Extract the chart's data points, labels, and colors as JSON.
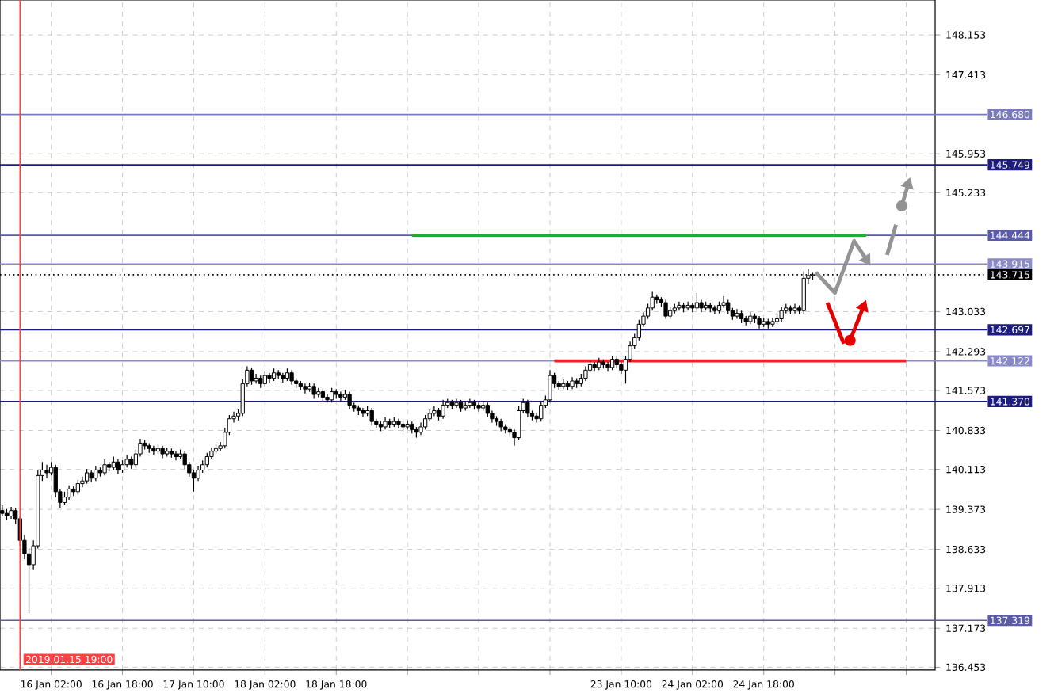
{
  "chart_data": {
    "type": "candlestick",
    "categories": [
      null,
      null,
      null,
      null,
      null,
      null,
      null,
      null,
      null,
      null,
      null,
      "16 Jan 02:00",
      null,
      null,
      null,
      null,
      null,
      null,
      null,
      null,
      null,
      null,
      null,
      null,
      null,
      null,
      null,
      "16 Jan 18:00",
      null,
      null,
      null,
      null,
      null,
      null,
      null,
      null,
      null,
      null,
      null,
      null,
      null,
      null,
      null,
      "17 Jan 10:00",
      null,
      null,
      null,
      null,
      null,
      null,
      null,
      null,
      null,
      null,
      null,
      null,
      null,
      null,
      null,
      "18 Jan 02:00",
      null,
      null,
      null,
      null,
      null,
      null,
      null,
      null,
      null,
      null,
      null,
      null,
      null,
      null,
      null,
      "18 Jan 18:00",
      null,
      null,
      null,
      null,
      null,
      null,
      null,
      null,
      null,
      null,
      null,
      null,
      null,
      null,
      null,
      null,
      null,
      null,
      null,
      null,
      null,
      null,
      null,
      null,
      null,
      null,
      null,
      null,
      null,
      null,
      null,
      null,
      null,
      null,
      null,
      null,
      null,
      null,
      null,
      null,
      null,
      null,
      null,
      null,
      null,
      null,
      null,
      null,
      null,
      null,
      null,
      null,
      null,
      null,
      null,
      null,
      null,
      null,
      null,
      null,
      null,
      null,
      null,
      "23 Jan 10:00",
      null,
      null,
      null,
      null,
      null,
      null,
      null,
      null,
      null,
      null,
      null,
      null,
      null,
      null,
      null,
      "24 Jan 02:00",
      null,
      null,
      null,
      null,
      null,
      null,
      null,
      null,
      null,
      null,
      null,
      null,
      null,
      null,
      null,
      "24 Jan 18:00",
      null,
      null,
      null,
      null,
      null,
      null,
      null,
      null,
      null,
      null,
      null,
      null,
      null,
      null,
      null,
      null,
      null,
      null,
      null,
      null,
      null,
      null,
      null,
      null,
      null,
      null,
      null,
      null,
      null,
      null,
      null,
      null,
      null,
      null,
      null,
      null,
      null,
      null
    ],
    "ohlc": [
      [
        139.35,
        139.45,
        139.25,
        139.3
      ],
      [
        139.3,
        139.38,
        139.18,
        139.25
      ],
      [
        139.25,
        139.42,
        139.2,
        139.35
      ],
      [
        139.35,
        139.4,
        139.1,
        139.2
      ],
      [
        139.2,
        139.25,
        138.7,
        138.8
      ],
      [
        138.8,
        138.9,
        138.45,
        138.55
      ],
      [
        138.55,
        138.65,
        137.45,
        138.35
      ],
      [
        138.35,
        138.8,
        138.25,
        138.7
      ],
      [
        138.7,
        140.1,
        138.65,
        140.0
      ],
      [
        140.0,
        140.25,
        139.9,
        140.1
      ],
      [
        140.1,
        140.2,
        139.95,
        140.05
      ],
      [
        140.05,
        140.25,
        140.0,
        140.15
      ],
      [
        140.15,
        140.2,
        139.6,
        139.7
      ],
      [
        139.7,
        139.75,
        139.4,
        139.5
      ],
      [
        139.5,
        139.7,
        139.45,
        139.6
      ],
      [
        139.6,
        139.82,
        139.55,
        139.75
      ],
      [
        139.75,
        139.8,
        139.62,
        139.7
      ],
      [
        139.7,
        139.92,
        139.65,
        139.85
      ],
      [
        139.85,
        139.98,
        139.78,
        139.9
      ],
      [
        139.9,
        140.12,
        139.85,
        140.05
      ],
      [
        140.05,
        140.1,
        139.88,
        139.95
      ],
      [
        139.95,
        140.18,
        139.9,
        140.1
      ],
      [
        140.1,
        140.15,
        139.98,
        140.05
      ],
      [
        140.05,
        140.3,
        140.0,
        140.2
      ],
      [
        140.2,
        140.25,
        140.08,
        140.15
      ],
      [
        140.15,
        140.35,
        140.1,
        140.25
      ],
      [
        140.25,
        140.3,
        140.02,
        140.1
      ],
      [
        140.1,
        140.28,
        140.05,
        140.2
      ],
      [
        140.2,
        140.38,
        140.15,
        140.3
      ],
      [
        140.3,
        140.35,
        140.12,
        140.2
      ],
      [
        140.2,
        140.48,
        140.15,
        140.4
      ],
      [
        140.4,
        140.68,
        140.35,
        140.6
      ],
      [
        140.6,
        140.65,
        140.48,
        140.55
      ],
      [
        140.55,
        140.6,
        140.42,
        140.5
      ],
      [
        140.5,
        140.55,
        140.38,
        140.45
      ],
      [
        140.45,
        140.58,
        140.4,
        140.5
      ],
      [
        140.5,
        140.55,
        140.32,
        140.4
      ],
      [
        140.4,
        140.52,
        140.35,
        140.45
      ],
      [
        140.45,
        140.5,
        140.33,
        140.4
      ],
      [
        140.4,
        140.45,
        140.28,
        140.35
      ],
      [
        140.35,
        140.48,
        140.3,
        140.4
      ],
      [
        140.4,
        140.45,
        140.12,
        140.2
      ],
      [
        140.2,
        140.25,
        139.98,
        140.05
      ],
      [
        140.05,
        140.1,
        139.7,
        139.95
      ],
      [
        139.95,
        140.18,
        139.9,
        140.1
      ],
      [
        140.1,
        140.28,
        140.05,
        140.2
      ],
      [
        140.2,
        140.42,
        140.15,
        140.35
      ],
      [
        140.35,
        140.52,
        140.3,
        140.45
      ],
      [
        140.45,
        140.58,
        140.4,
        140.5
      ],
      [
        140.5,
        140.62,
        140.45,
        140.55
      ],
      [
        140.55,
        140.88,
        140.5,
        140.8
      ],
      [
        140.8,
        141.12,
        140.75,
        141.05
      ],
      [
        141.05,
        141.18,
        140.98,
        141.1
      ],
      [
        141.1,
        141.22,
        141.02,
        141.15
      ],
      [
        141.15,
        141.78,
        141.1,
        141.7
      ],
      [
        141.7,
        142.02,
        141.65,
        141.95
      ],
      [
        141.95,
        142.0,
        141.68,
        141.75
      ],
      [
        141.75,
        141.88,
        141.7,
        141.8
      ],
      [
        141.8,
        141.85,
        141.62,
        141.7
      ],
      [
        141.7,
        141.92,
        141.65,
        141.85
      ],
      [
        141.85,
        141.9,
        141.72,
        141.8
      ],
      [
        141.8,
        141.98,
        141.75,
        141.9
      ],
      [
        141.9,
        141.95,
        141.78,
        141.85
      ],
      [
        141.85,
        141.9,
        141.72,
        141.8
      ],
      [
        141.8,
        141.98,
        141.75,
        141.9
      ],
      [
        141.9,
        141.95,
        141.68,
        141.75
      ],
      [
        141.75,
        141.8,
        141.62,
        141.7
      ],
      [
        141.7,
        141.75,
        141.58,
        141.65
      ],
      [
        141.65,
        141.7,
        141.52,
        141.6
      ],
      [
        141.6,
        141.72,
        141.55,
        141.65
      ],
      [
        141.65,
        141.7,
        141.42,
        141.5
      ],
      [
        141.5,
        141.62,
        141.45,
        141.55
      ],
      [
        141.55,
        141.6,
        141.38,
        141.45
      ],
      [
        141.45,
        141.5,
        141.35,
        141.4
      ],
      [
        141.4,
        141.62,
        141.35,
        141.55
      ],
      [
        141.55,
        141.6,
        141.42,
        141.5
      ],
      [
        141.5,
        141.55,
        141.38,
        141.45
      ],
      [
        141.45,
        141.58,
        141.4,
        141.5
      ],
      [
        141.5,
        141.55,
        141.22,
        141.3
      ],
      [
        141.3,
        141.35,
        141.18,
        141.25
      ],
      [
        141.25,
        141.3,
        141.12,
        141.2
      ],
      [
        141.2,
        141.25,
        141.08,
        141.15
      ],
      [
        141.15,
        141.28,
        141.1,
        141.2
      ],
      [
        141.2,
        141.25,
        140.92,
        141.0
      ],
      [
        141.0,
        141.05,
        140.88,
        140.95
      ],
      [
        140.95,
        141.0,
        140.82,
        140.9
      ],
      [
        140.9,
        141.08,
        140.85,
        141.0
      ],
      [
        141.0,
        141.05,
        140.88,
        140.95
      ],
      [
        140.95,
        141.08,
        140.9,
        141.0
      ],
      [
        141.0,
        141.05,
        140.88,
        140.95
      ],
      [
        140.95,
        141.0,
        140.82,
        140.9
      ],
      [
        140.9,
        141.02,
        140.85,
        140.95
      ],
      [
        140.95,
        141.0,
        140.78,
        140.85
      ],
      [
        140.85,
        140.9,
        140.7,
        140.8
      ],
      [
        140.8,
        140.98,
        140.75,
        140.9
      ],
      [
        140.9,
        141.12,
        140.85,
        141.05
      ],
      [
        141.05,
        141.22,
        141.0,
        141.15
      ],
      [
        141.15,
        141.28,
        141.1,
        141.2
      ],
      [
        141.2,
        141.25,
        141.02,
        141.1
      ],
      [
        141.1,
        141.4,
        141.05,
        141.3
      ],
      [
        141.3,
        141.42,
        141.25,
        141.35
      ],
      [
        141.35,
        141.4,
        141.22,
        141.3
      ],
      [
        141.3,
        141.42,
        141.25,
        141.35
      ],
      [
        141.35,
        141.4,
        141.18,
        141.25
      ],
      [
        141.25,
        141.38,
        141.2,
        141.3
      ],
      [
        141.3,
        141.42,
        141.25,
        141.35
      ],
      [
        141.35,
        141.4,
        141.22,
        141.3
      ],
      [
        141.3,
        141.35,
        141.18,
        141.25
      ],
      [
        141.25,
        141.38,
        141.2,
        141.3
      ],
      [
        141.3,
        141.35,
        141.08,
        141.15
      ],
      [
        141.15,
        141.2,
        140.98,
        141.05
      ],
      [
        141.05,
        141.1,
        140.92,
        141.0
      ],
      [
        141.0,
        141.05,
        140.82,
        140.9
      ],
      [
        140.9,
        140.95,
        140.78,
        140.85
      ],
      [
        140.85,
        140.9,
        140.72,
        140.8
      ],
      [
        140.8,
        140.85,
        140.55,
        140.7
      ],
      [
        140.7,
        141.28,
        140.65,
        141.2
      ],
      [
        141.2,
        141.42,
        141.15,
        141.35
      ],
      [
        141.35,
        141.4,
        141.08,
        141.15
      ],
      [
        141.15,
        141.2,
        141.02,
        141.1
      ],
      [
        141.1,
        141.15,
        140.98,
        141.05
      ],
      [
        141.05,
        141.38,
        141.0,
        141.3
      ],
      [
        141.3,
        141.48,
        141.25,
        141.4
      ],
      [
        141.4,
        141.95,
        141.35,
        141.85
      ],
      [
        141.85,
        141.9,
        141.62,
        141.7
      ],
      [
        141.7,
        141.75,
        141.58,
        141.65
      ],
      [
        141.65,
        141.78,
        141.6,
        141.7
      ],
      [
        141.7,
        141.75,
        141.58,
        141.65
      ],
      [
        141.65,
        141.82,
        141.6,
        141.75
      ],
      [
        141.75,
        141.8,
        141.62,
        141.7
      ],
      [
        141.7,
        141.88,
        141.65,
        141.8
      ],
      [
        141.8,
        142.02,
        141.75,
        141.95
      ],
      [
        141.95,
        142.12,
        141.9,
        142.05
      ],
      [
        142.05,
        142.1,
        141.92,
        142.0
      ],
      [
        142.0,
        142.18,
        141.95,
        142.1
      ],
      [
        142.1,
        142.15,
        141.98,
        142.05
      ],
      [
        142.05,
        142.1,
        141.92,
        142.0
      ],
      [
        142.0,
        142.22,
        141.95,
        142.15
      ],
      [
        142.15,
        142.2,
        141.98,
        142.05
      ],
      [
        142.05,
        142.1,
        141.88,
        141.95
      ],
      [
        141.95,
        142.22,
        141.7,
        142.15
      ],
      [
        142.15,
        142.48,
        142.1,
        142.4
      ],
      [
        142.4,
        142.62,
        142.35,
        142.55
      ],
      [
        142.55,
        142.88,
        142.5,
        142.8
      ],
      [
        142.8,
        143.02,
        142.75,
        142.95
      ],
      [
        142.95,
        143.18,
        142.9,
        143.1
      ],
      [
        143.1,
        143.4,
        143.05,
        143.3
      ],
      [
        143.3,
        143.35,
        143.18,
        143.25
      ],
      [
        143.25,
        143.3,
        143.12,
        143.2
      ],
      [
        143.2,
        143.25,
        142.9,
        142.95
      ],
      [
        142.95,
        143.12,
        142.9,
        143.05
      ],
      [
        143.05,
        143.18,
        143.0,
        143.1
      ],
      [
        143.1,
        143.22,
        143.05,
        143.15
      ],
      [
        143.15,
        143.2,
        143.02,
        143.1
      ],
      [
        143.1,
        143.22,
        143.05,
        143.15
      ],
      [
        143.15,
        143.2,
        143.02,
        143.1
      ],
      [
        143.1,
        143.38,
        143.05,
        143.2
      ],
      [
        143.2,
        143.25,
        143.02,
        143.1
      ],
      [
        143.1,
        143.22,
        143.05,
        143.15
      ],
      [
        143.15,
        143.2,
        143.02,
        143.1
      ],
      [
        143.1,
        143.15,
        142.98,
        143.05
      ],
      [
        143.05,
        143.22,
        143.0,
        143.15
      ],
      [
        143.15,
        143.32,
        143.1,
        143.2
      ],
      [
        143.2,
        143.25,
        142.98,
        143.05
      ],
      [
        143.05,
        143.1,
        142.88,
        142.95
      ],
      [
        142.95,
        143.08,
        142.9,
        143.0
      ],
      [
        143.0,
        143.05,
        142.82,
        142.9
      ],
      [
        142.9,
        142.95,
        142.78,
        142.85
      ],
      [
        142.85,
        143.02,
        142.8,
        142.95
      ],
      [
        142.95,
        143.0,
        142.82,
        142.9
      ],
      [
        142.9,
        142.95,
        142.72,
        142.8
      ],
      [
        142.8,
        142.92,
        142.75,
        142.85
      ],
      [
        142.85,
        142.9,
        142.72,
        142.8
      ],
      [
        142.8,
        142.92,
        142.75,
        142.85
      ],
      [
        142.85,
        142.98,
        142.8,
        142.9
      ],
      [
        142.9,
        143.12,
        142.85,
        143.05
      ],
      [
        143.05,
        143.18,
        143.0,
        143.1
      ],
      [
        143.1,
        143.15,
        142.98,
        143.05
      ],
      [
        143.05,
        143.18,
        143.0,
        143.1
      ],
      [
        143.1,
        143.15,
        142.98,
        143.05
      ],
      [
        143.05,
        143.78,
        143.0,
        143.65
      ],
      [
        143.65,
        143.82,
        143.55,
        143.7
      ],
      [
        143.7,
        143.75,
        143.62,
        143.715
      ],
      null,
      null,
      null,
      null,
      null,
      null,
      null,
      null,
      null,
      null,
      null,
      null,
      null,
      null,
      null,
      null,
      null,
      null,
      null,
      null,
      null,
      null,
      null,
      null,
      null,
      null,
      null
    ],
    "series": [
      {
        "type": "line",
        "color": "#22aa33",
        "values": [
          null,
          null,
          null,
          null,
          null,
          null,
          null,
          null,
          null,
          null,
          null,
          null,
          null,
          null,
          null,
          null,
          null,
          null,
          null,
          null,
          null,
          null,
          null,
          null,
          null,
          null,
          null,
          null,
          null,
          null,
          null,
          null,
          null,
          null,
          null,
          null,
          null,
          null,
          null,
          null,
          null,
          null,
          null,
          null,
          null,
          null,
          null,
          null,
          null,
          null,
          null,
          null,
          null,
          null,
          null,
          null,
          null,
          null,
          null,
          null,
          null,
          null,
          null,
          null,
          null,
          null,
          null,
          null,
          null,
          null,
          null,
          null,
          null,
          null,
          null,
          null,
          null,
          null,
          null,
          null,
          null,
          null,
          null,
          null,
          null,
          null,
          null,
          null,
          null,
          null,
          null,
          null,
          144.444,
          144.444,
          144.444,
          144.444,
          144.444,
          144.444,
          144.444,
          144.444,
          144.444,
          144.444,
          144.444,
          144.444,
          144.444,
          144.444,
          144.444,
          144.444,
          144.444,
          144.444,
          144.444,
          144.444,
          144.444,
          144.444,
          144.444,
          144.444,
          144.444,
          144.444,
          144.444,
          144.444,
          144.444,
          144.444,
          144.444,
          144.444,
          144.444,
          144.444,
          144.444,
          144.444,
          144.444,
          144.444,
          144.444,
          144.444,
          144.444,
          144.444,
          144.444,
          144.444,
          144.444,
          144.444,
          144.444,
          144.444,
          144.444,
          144.444,
          144.444,
          144.444,
          144.444,
          144.444,
          144.444,
          144.444,
          144.444,
          144.444,
          144.444,
          144.444,
          144.444,
          144.444,
          144.444,
          144.444,
          144.444,
          144.444,
          144.444,
          144.444,
          144.444,
          144.444,
          144.444,
          144.444,
          144.444,
          144.444,
          144.444,
          144.444,
          144.444,
          144.444,
          144.444,
          144.444,
          144.444,
          144.444,
          144.444,
          144.444,
          144.444,
          144.444,
          144.444,
          144.444,
          144.444,
          144.444,
          144.444,
          144.444,
          144.444,
          144.444,
          144.444,
          144.444,
          144.444,
          144.444,
          144.444,
          144.444,
          144.444,
          144.444,
          144.444,
          null,
          null,
          null,
          null,
          null,
          null,
          null,
          null,
          null,
          null,
          null,
          null,
          null,
          null,
          null
        ]
      },
      {
        "type": "line",
        "color": "#ee2222",
        "values": [
          null,
          null,
          null,
          null,
          null,
          null,
          null,
          null,
          null,
          null,
          null,
          null,
          null,
          null,
          null,
          null,
          null,
          null,
          null,
          null,
          null,
          null,
          null,
          null,
          null,
          null,
          null,
          null,
          null,
          null,
          null,
          null,
          null,
          null,
          null,
          null,
          null,
          null,
          null,
          null,
          null,
          null,
          null,
          null,
          null,
          null,
          null,
          null,
          null,
          null,
          null,
          null,
          null,
          null,
          null,
          null,
          null,
          null,
          null,
          null,
          null,
          null,
          null,
          null,
          null,
          null,
          null,
          null,
          null,
          null,
          null,
          null,
          null,
          null,
          null,
          null,
          null,
          null,
          null,
          null,
          null,
          null,
          null,
          null,
          null,
          null,
          null,
          null,
          null,
          null,
          null,
          null,
          null,
          null,
          null,
          null,
          null,
          null,
          null,
          null,
          null,
          null,
          null,
          null,
          null,
          null,
          null,
          null,
          null,
          null,
          null,
          null,
          null,
          null,
          null,
          null,
          null,
          null,
          null,
          null,
          null,
          null,
          null,
          null,
          142.122,
          142.122,
          142.122,
          142.122,
          142.122,
          142.122,
          142.122,
          142.122,
          142.122,
          142.122,
          142.122,
          142.122,
          142.122,
          142.122,
          142.122,
          142.122,
          142.122,
          142.122,
          142.122,
          142.122,
          142.122,
          142.122,
          142.122,
          142.122,
          142.122,
          142.122,
          142.122,
          142.122,
          142.122,
          142.122,
          142.122,
          142.122,
          142.122,
          142.122,
          142.122,
          142.122,
          142.122,
          142.122,
          142.122,
          142.122,
          142.122,
          142.122,
          142.122,
          142.122,
          142.122,
          142.122,
          142.122,
          142.122,
          142.122,
          142.122,
          142.122,
          142.122,
          142.122,
          142.122,
          142.122,
          142.122,
          142.122,
          142.122,
          142.122,
          142.122,
          142.122,
          142.122,
          142.122,
          142.122,
          142.122,
          142.122,
          142.122,
          142.122,
          142.122,
          142.122,
          142.122,
          142.122,
          142.122,
          142.122,
          142.122,
          142.122,
          142.122,
          142.122,
          142.122,
          142.122,
          null,
          null,
          null,
          null,
          null,
          null
        ]
      }
    ],
    "ylim": [
      136.4,
      148.8
    ],
    "yticks": [
      136.453,
      137.173,
      137.913,
      138.633,
      139.373,
      140.113,
      140.833,
      141.573,
      142.293,
      143.033,
      145.233,
      145.953,
      147.413,
      148.153
    ],
    "grid": true,
    "ref_lines": [
      {
        "axis": "y",
        "value": 146.68,
        "label": "146.680",
        "color": "#7a7ac0"
      },
      {
        "axis": "y",
        "value": 145.749,
        "label": "145.749",
        "color": "#1c1c80"
      },
      {
        "axis": "y",
        "value": 144.444,
        "label": "144.444",
        "color": "#5a5aa8"
      },
      {
        "axis": "y",
        "value": 143.915,
        "label": "143.915",
        "color": "#8a8ac8"
      },
      {
        "axis": "y",
        "value": 143.715,
        "label": "143.715",
        "color": "#000000",
        "line_style": "dotted"
      },
      {
        "axis": "y",
        "value": 142.697,
        "label": "142.697",
        "color": "#1c1c80"
      },
      {
        "axis": "y",
        "value": 142.122,
        "label": "142.122",
        "color": "#8a8ac8"
      },
      {
        "axis": "y",
        "value": 141.37,
        "label": "141.370",
        "color": "#1c1c80"
      },
      {
        "axis": "y",
        "value": 137.319,
        "label": "137.319",
        "color": "#5a5aa8"
      }
    ],
    "annotations": [
      "2019.01.15 19:00"
    ]
  }
}
